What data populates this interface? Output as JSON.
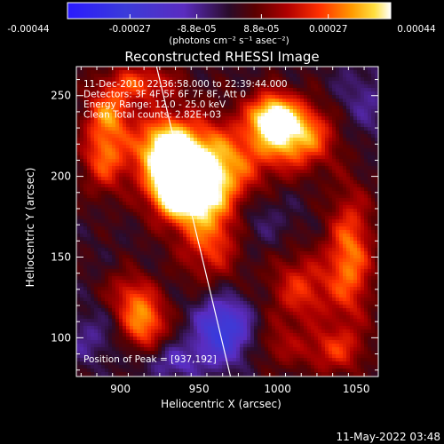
{
  "chart_data": {
    "type": "heatmap",
    "title": "Reconstructed RHESSI Image",
    "xlabel": "Heliocentric X (arcsec)",
    "ylabel": "Heliocentric Y (arcsec)",
    "xlim": [
      872,
      1064
    ],
    "ylim": [
      76,
      268
    ],
    "x_ticks": [
      900,
      950,
      1000,
      1050
    ],
    "y_ticks": [
      100,
      150,
      200,
      250
    ],
    "grid": false,
    "colorbar": {
      "range": [
        -0.00044,
        0.00044
      ],
      "tick_values": [
        -0.00044,
        -0.00027,
        -8.8e-05,
        8.8e-05,
        0.00027,
        0.00044
      ],
      "tick_labels": [
        "-0.00044",
        "-0.00027",
        "-8.8e-05",
        "8.8e-05",
        "0.00027",
        "0.00044"
      ],
      "units_label": "(photons cm⁻² s⁻¹ asec⁻²)"
    },
    "annotations": [
      "11-Dec-2010 22:36:58.000 to 22:39:44.000",
      "Detectors: 3F 4F 5F 6F 7F 8F, Att 0",
      "Energy Range: 12.0 - 25.0 keV",
      "Clean    Total counts: 2.82E+03"
    ],
    "peak_text": "Position of Peak = [937,192]",
    "peak": [
      937,
      192
    ],
    "limb_line": [
      [
        923,
        268
      ],
      [
        970,
        76
      ]
    ],
    "blobs": [
      {
        "x": 955,
        "y": 203,
        "sx": 22,
        "sy": 20,
        "amp": 0.0004
      },
      {
        "x": 928,
        "y": 218,
        "sx": 14,
        "sy": 14,
        "amp": 0.00036
      },
      {
        "x": 937,
        "y": 192,
        "sx": 12,
        "sy": 12,
        "amp": 0.00044
      },
      {
        "x": 1010,
        "y": 226,
        "sx": 18,
        "sy": 14,
        "amp": 0.00038
      },
      {
        "x": 996,
        "y": 238,
        "sx": 10,
        "sy": 10,
        "amp": 0.0003
      },
      {
        "x": 958,
        "y": 165,
        "sx": 14,
        "sy": 20,
        "amp": 0.00025
      },
      {
        "x": 890,
        "y": 214,
        "sx": 10,
        "sy": 16,
        "amp": 0.00026
      },
      {
        "x": 893,
        "y": 240,
        "sx": 10,
        "sy": 10,
        "amp": 0.00022
      },
      {
        "x": 912,
        "y": 258,
        "sx": 16,
        "sy": 8,
        "amp": 0.00022
      },
      {
        "x": 1046,
        "y": 150,
        "sx": 10,
        "sy": 28,
        "amp": 0.00028
      },
      {
        "x": 1015,
        "y": 130,
        "sx": 14,
        "sy": 16,
        "amp": 0.0002
      },
      {
        "x": 915,
        "y": 110,
        "sx": 10,
        "sy": 12,
        "amp": 0.0003
      },
      {
        "x": 905,
        "y": 128,
        "sx": 10,
        "sy": 10,
        "amp": 0.00015
      },
      {
        "x": 1035,
        "y": 92,
        "sx": 14,
        "sy": 10,
        "amp": 0.00018
      },
      {
        "x": 1000,
        "y": 95,
        "sx": 10,
        "sy": 10,
        "amp": 0.0001
      },
      {
        "x": 965,
        "y": 105,
        "sx": 12,
        "sy": 14,
        "amp": -0.00032
      },
      {
        "x": 980,
        "y": 175,
        "sx": 18,
        "sy": 14,
        "amp": -0.00012
      },
      {
        "x": 1055,
        "y": 245,
        "sx": 16,
        "sy": 18,
        "amp": -0.0001
      },
      {
        "x": 880,
        "y": 100,
        "sx": 12,
        "sy": 12,
        "amp": -0.0001
      },
      {
        "x": 935,
        "y": 85,
        "sx": 14,
        "sy": 8,
        "amp": -0.00014
      }
    ],
    "colormap": [
      [
        0.0,
        "#2a1aff"
      ],
      [
        0.18,
        "#3b3bd9"
      ],
      [
        0.36,
        "#5a2cc0"
      ],
      [
        0.5,
        "#2a0b2a"
      ],
      [
        0.58,
        "#5a0000"
      ],
      [
        0.68,
        "#b00000"
      ],
      [
        0.78,
        "#ff3000"
      ],
      [
        0.88,
        "#ff9a00"
      ],
      [
        0.95,
        "#ffe040"
      ],
      [
        1.0,
        "#ffffff"
      ]
    ]
  },
  "footer": {
    "timestamp": "11-May-2022 03:48"
  }
}
